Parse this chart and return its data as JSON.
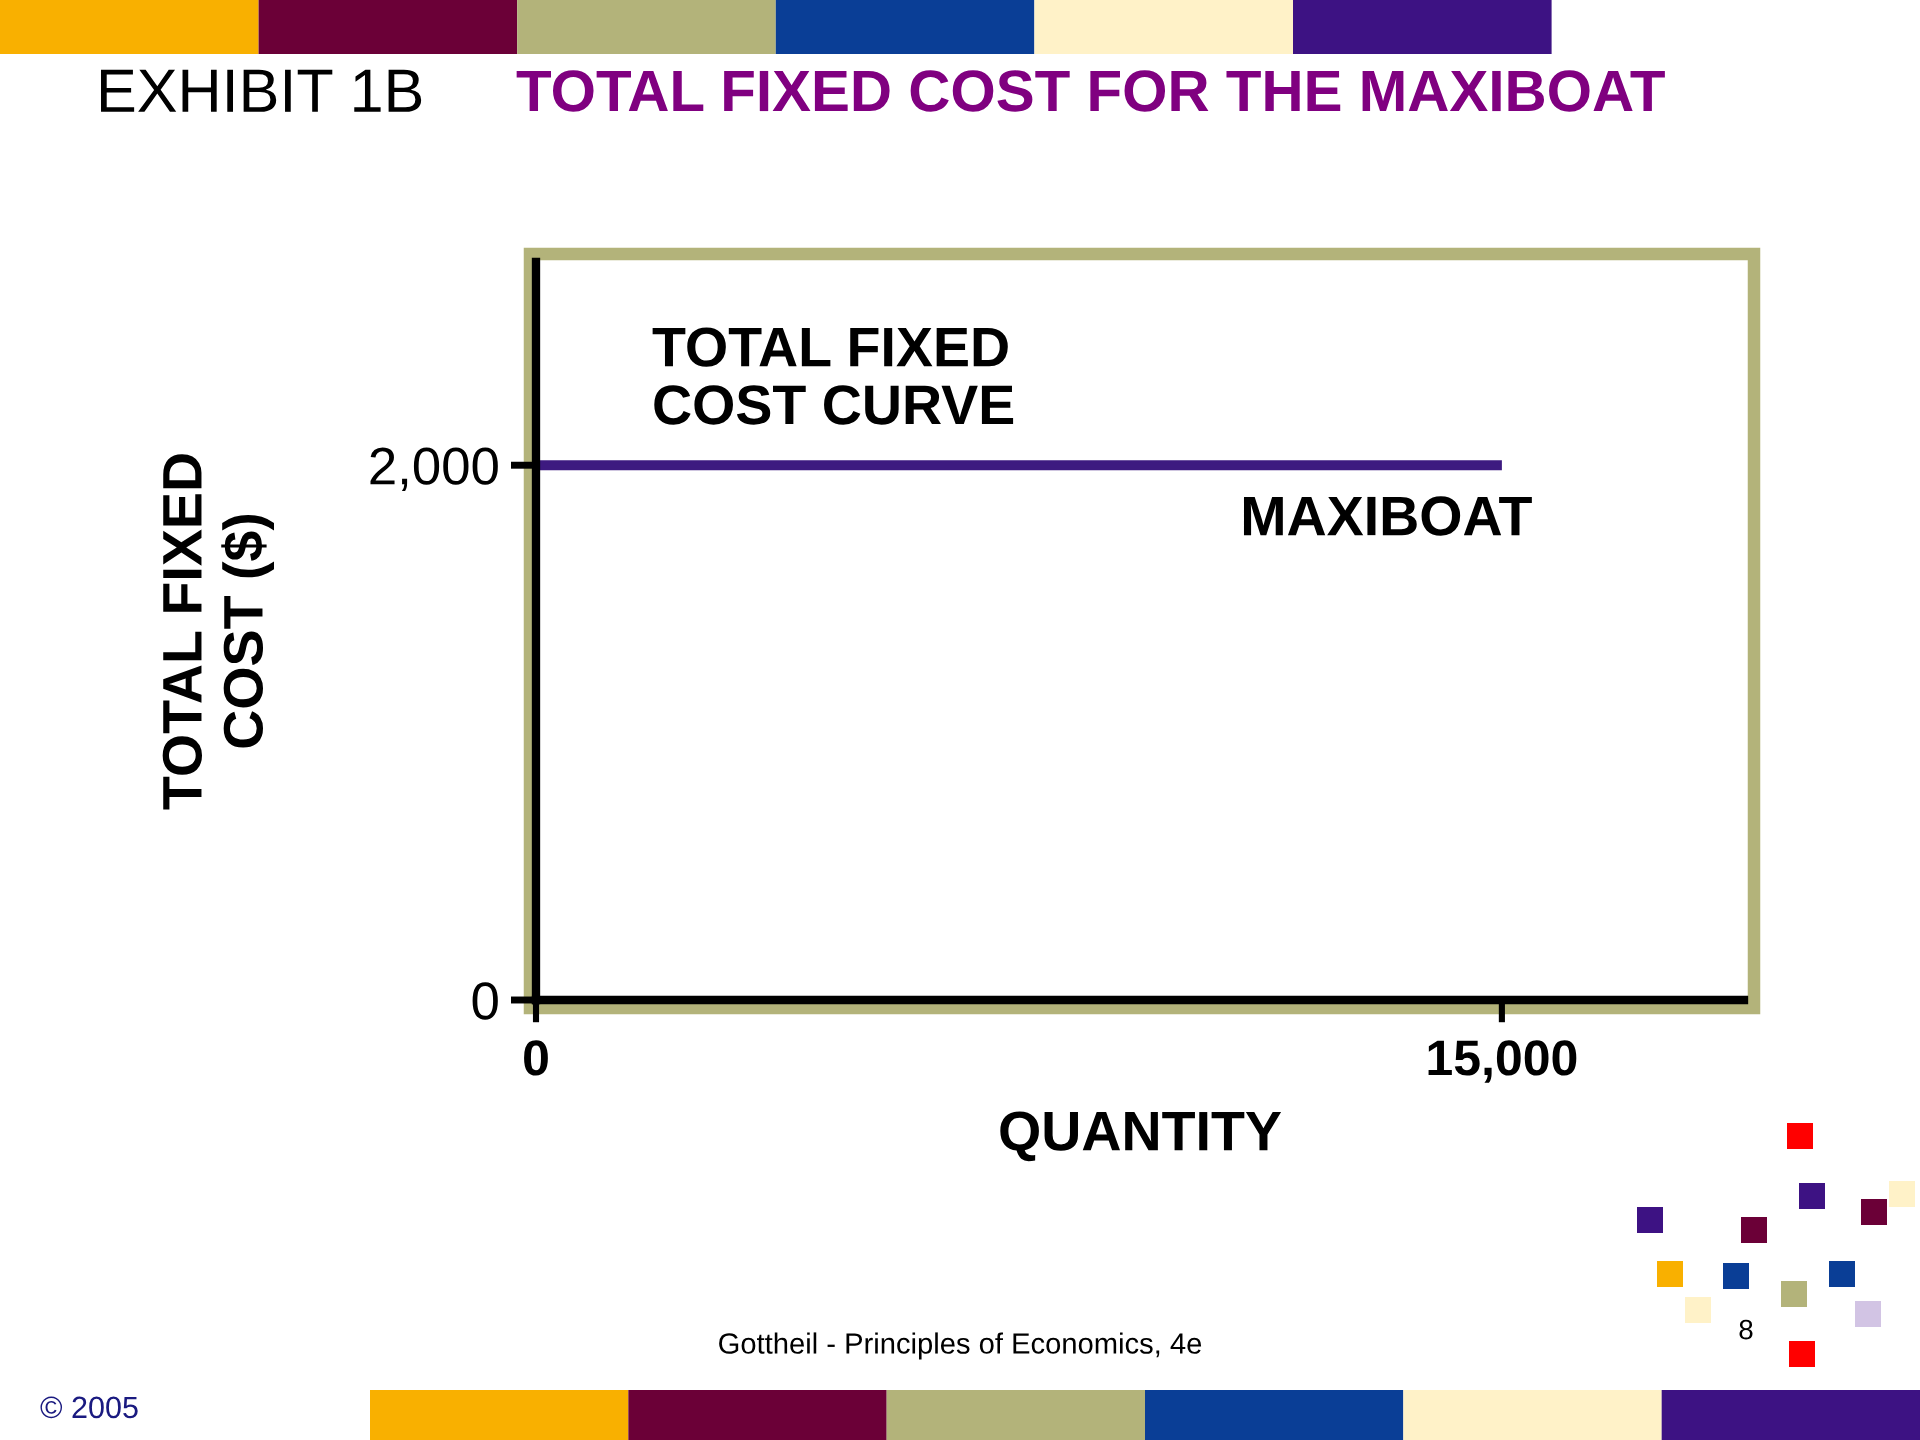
{
  "chart_data": {
    "type": "line",
    "title": "EXHIBIT 1B",
    "subtitle": "TOTAL FIXED COST FOR THE MAXIBOAT",
    "xlabel": "QUANTITY",
    "ylabel": "TOTAL FIXED\nCOST ($)",
    "x": [
      0,
      15000
    ],
    "series": [
      {
        "name": "MAXIBOAT",
        "color": "#3d1a80",
        "values": [
          2000,
          2000
        ]
      }
    ],
    "xlim": [
      0,
      18760
    ],
    "ylim": [
      0,
      2760
    ],
    "xticks": [
      {
        "value": 0,
        "label": "0"
      },
      {
        "value": 15000,
        "label": "15,000"
      }
    ],
    "yticks": [
      {
        "value": 0,
        "label": "0"
      },
      {
        "value": 2000,
        "label": "2,000"
      }
    ],
    "line_style": "solid",
    "annotations": [
      "TOTAL FIXED\nCOST CURVE",
      "Gottheil - Principles of Economics, 4e",
      "8",
      "© 2005"
    ]
  }
}
